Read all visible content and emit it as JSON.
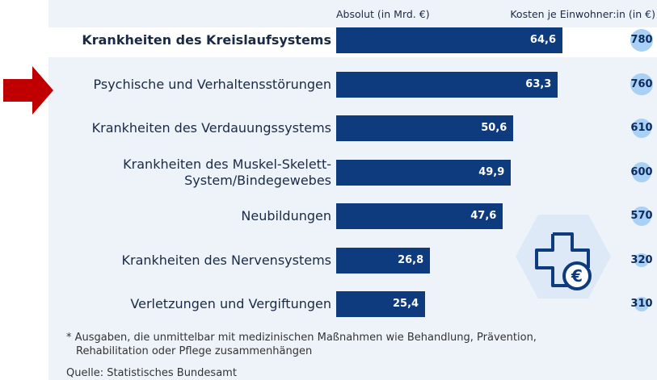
{
  "chart_data": {
    "type": "bar",
    "column_headers": [
      "Absolut (in Mrd. €)",
      "Kosten je Einwohner:in (in €)"
    ],
    "categories": [
      "Krankheiten des Kreislaufsystems",
      "Psychische und Verhaltensstörungen",
      "Krankheiten des Verdauungssystems",
      "Krankheiten des Muskel-Skelett-\nSystem/Bindegewebes",
      "Neubildungen",
      "Krankheiten des Nervensystems",
      "Verletzungen und Vergiftungen"
    ],
    "series": [
      {
        "name": "Absolut (in Mrd. €)",
        "color": "#0d3b7d",
        "values": [
          64.6,
          63.3,
          50.6,
          49.9,
          47.6,
          26.8,
          25.4
        ],
        "value_labels": [
          "64,6",
          "63,3",
          "50,6",
          "49,9",
          "47,6",
          "26,8",
          "25,4"
        ]
      },
      {
        "name": "Kosten je Einwohner:in (in €)",
        "color": "#a9d0f5",
        "values": [
          780,
          760,
          610,
          600,
          570,
          320,
          310
        ]
      }
    ],
    "footnote": "* Ausgaben, die unmittelbar mit medizinischen Maßnahmen wie Behandlung, Prävention,\nRehabilitation oder Pflege zusammenhängen",
    "source": "Quelle: Statistisches Bundesamt"
  }
}
